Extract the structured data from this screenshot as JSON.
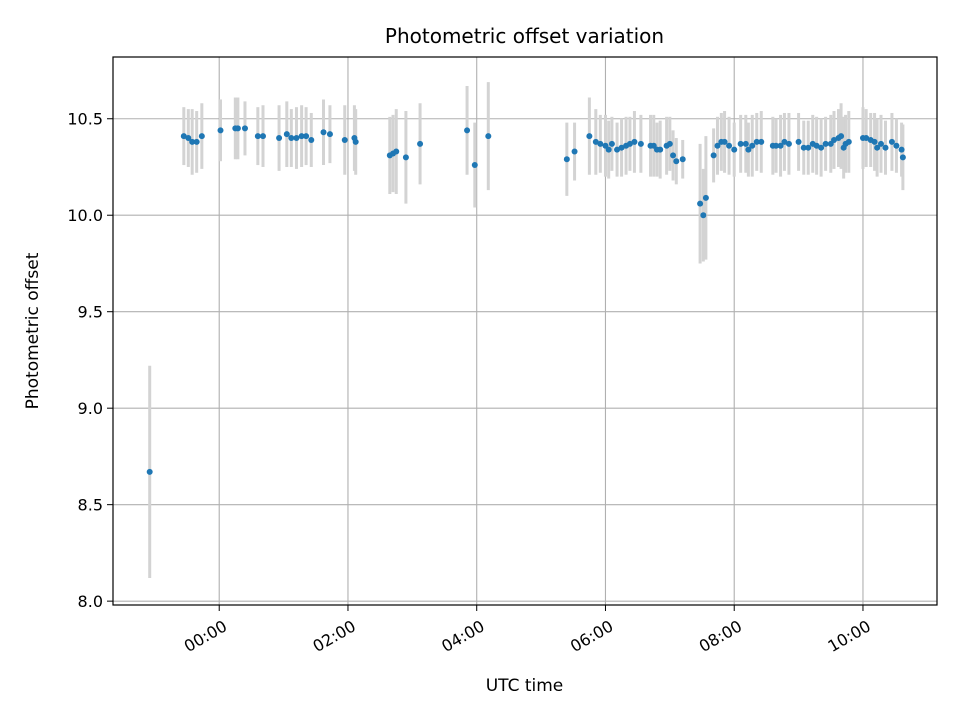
{
  "chart_data": {
    "type": "scatter",
    "title": "Photometric offset variation",
    "xlabel": "UTC time",
    "ylabel": "Photometric offset",
    "x_unit": "hours (UTC)",
    "xlim": [
      -1.65,
      11.15
    ],
    "ylim": [
      7.98,
      10.82
    ],
    "x_ticks": [
      0,
      2,
      4,
      6,
      8,
      10
    ],
    "x_tick_labels": [
      "00:00",
      "02:00",
      "04:00",
      "06:00",
      "08:00",
      "10:00"
    ],
    "y_ticks": [
      8.0,
      8.5,
      9.0,
      9.5,
      10.0,
      10.5
    ],
    "y_tick_labels": [
      "8.0",
      "8.5",
      "9.0",
      "9.5",
      "10.0",
      "10.5"
    ],
    "grid": true,
    "point_color": "#1f77b4",
    "errorbar_color": "#d3d3d3",
    "points": [
      [
        -1.08,
        8.67,
        0.55
      ],
      [
        -0.55,
        10.41,
        0.15
      ],
      [
        -0.48,
        10.4,
        0.15
      ],
      [
        -0.42,
        10.38,
        0.17
      ],
      [
        -0.35,
        10.38,
        0.16
      ],
      [
        -0.27,
        10.41,
        0.17
      ],
      [
        0.02,
        10.44,
        0.16
      ],
      [
        0.25,
        10.45,
        0.16
      ],
      [
        0.29,
        10.45,
        0.16
      ],
      [
        0.4,
        10.45,
        0.14
      ],
      [
        0.6,
        10.41,
        0.15
      ],
      [
        0.68,
        10.41,
        0.16
      ],
      [
        0.93,
        10.4,
        0.17
      ],
      [
        1.05,
        10.42,
        0.17
      ],
      [
        1.12,
        10.4,
        0.15
      ],
      [
        1.2,
        10.4,
        0.16
      ],
      [
        1.28,
        10.41,
        0.16
      ],
      [
        1.35,
        10.41,
        0.15
      ],
      [
        1.43,
        10.39,
        0.14
      ],
      [
        1.62,
        10.43,
        0.17
      ],
      [
        1.72,
        10.42,
        0.15
      ],
      [
        1.95,
        10.39,
        0.18
      ],
      [
        2.1,
        10.4,
        0.17
      ],
      [
        2.12,
        10.38,
        0.17
      ],
      [
        2.65,
        10.31,
        0.2
      ],
      [
        2.7,
        10.32,
        0.2
      ],
      [
        2.75,
        10.33,
        0.22
      ],
      [
        2.9,
        10.3,
        0.24
      ],
      [
        3.12,
        10.37,
        0.21
      ],
      [
        3.85,
        10.44,
        0.23
      ],
      [
        3.97,
        10.26,
        0.22
      ],
      [
        4.18,
        10.41,
        0.28
      ],
      [
        5.4,
        10.29,
        0.19
      ],
      [
        5.52,
        10.33,
        0.15
      ],
      [
        5.75,
        10.41,
        0.2
      ],
      [
        5.85,
        10.38,
        0.17
      ],
      [
        5.92,
        10.37,
        0.15
      ],
      [
        6.0,
        10.36,
        0.16
      ],
      [
        6.05,
        10.34,
        0.15
      ],
      [
        6.1,
        10.37,
        0.14
      ],
      [
        6.18,
        10.34,
        0.14
      ],
      [
        6.25,
        10.35,
        0.15
      ],
      [
        6.32,
        10.36,
        0.15
      ],
      [
        6.38,
        10.37,
        0.14
      ],
      [
        6.45,
        10.38,
        0.16
      ],
      [
        6.55,
        10.37,
        0.15
      ],
      [
        6.7,
        10.36,
        0.16
      ],
      [
        6.75,
        10.36,
        0.16
      ],
      [
        6.8,
        10.34,
        0.14
      ],
      [
        6.85,
        10.34,
        0.15
      ],
      [
        6.95,
        10.36,
        0.15
      ],
      [
        7.0,
        10.37,
        0.14
      ],
      [
        7.05,
        10.31,
        0.13
      ],
      [
        7.1,
        10.28,
        0.12
      ],
      [
        7.2,
        10.29,
        0.1
      ],
      [
        7.47,
        10.06,
        0.31
      ],
      [
        7.52,
        10.0,
        0.24
      ],
      [
        7.56,
        10.09,
        0.32
      ],
      [
        7.68,
        10.31,
        0.14
      ],
      [
        7.74,
        10.36,
        0.15
      ],
      [
        7.8,
        10.38,
        0.15
      ],
      [
        7.85,
        10.38,
        0.16
      ],
      [
        7.92,
        10.36,
        0.15
      ],
      [
        8.0,
        10.34,
        0.14
      ],
      [
        8.1,
        10.37,
        0.15
      ],
      [
        8.18,
        10.37,
        0.15
      ],
      [
        8.22,
        10.34,
        0.14
      ],
      [
        8.28,
        10.36,
        0.16
      ],
      [
        8.35,
        10.38,
        0.15
      ],
      [
        8.42,
        10.38,
        0.16
      ],
      [
        8.6,
        10.36,
        0.15
      ],
      [
        8.65,
        10.36,
        0.14
      ],
      [
        8.72,
        10.36,
        0.16
      ],
      [
        8.78,
        10.38,
        0.15
      ],
      [
        8.85,
        10.37,
        0.16
      ],
      [
        9.0,
        10.38,
        0.15
      ],
      [
        9.08,
        10.35,
        0.14
      ],
      [
        9.15,
        10.35,
        0.14
      ],
      [
        9.22,
        10.37,
        0.15
      ],
      [
        9.28,
        10.36,
        0.15
      ],
      [
        9.35,
        10.35,
        0.15
      ],
      [
        9.42,
        10.37,
        0.14
      ],
      [
        9.5,
        10.37,
        0.15
      ],
      [
        9.55,
        10.39,
        0.15
      ],
      [
        9.62,
        10.4,
        0.15
      ],
      [
        9.66,
        10.41,
        0.17
      ],
      [
        9.7,
        10.35,
        0.16
      ],
      [
        9.73,
        10.37,
        0.15
      ],
      [
        9.78,
        10.38,
        0.16
      ],
      [
        10.0,
        10.4,
        0.16
      ],
      [
        10.05,
        10.4,
        0.15
      ],
      [
        10.12,
        10.39,
        0.14
      ],
      [
        10.18,
        10.38,
        0.15
      ],
      [
        10.22,
        10.35,
        0.15
      ],
      [
        10.28,
        10.37,
        0.15
      ],
      [
        10.35,
        10.35,
        0.14
      ],
      [
        10.45,
        10.38,
        0.15
      ],
      [
        10.52,
        10.36,
        0.14
      ],
      [
        10.6,
        10.34,
        0.14
      ],
      [
        10.62,
        10.3,
        0.17
      ]
    ]
  }
}
